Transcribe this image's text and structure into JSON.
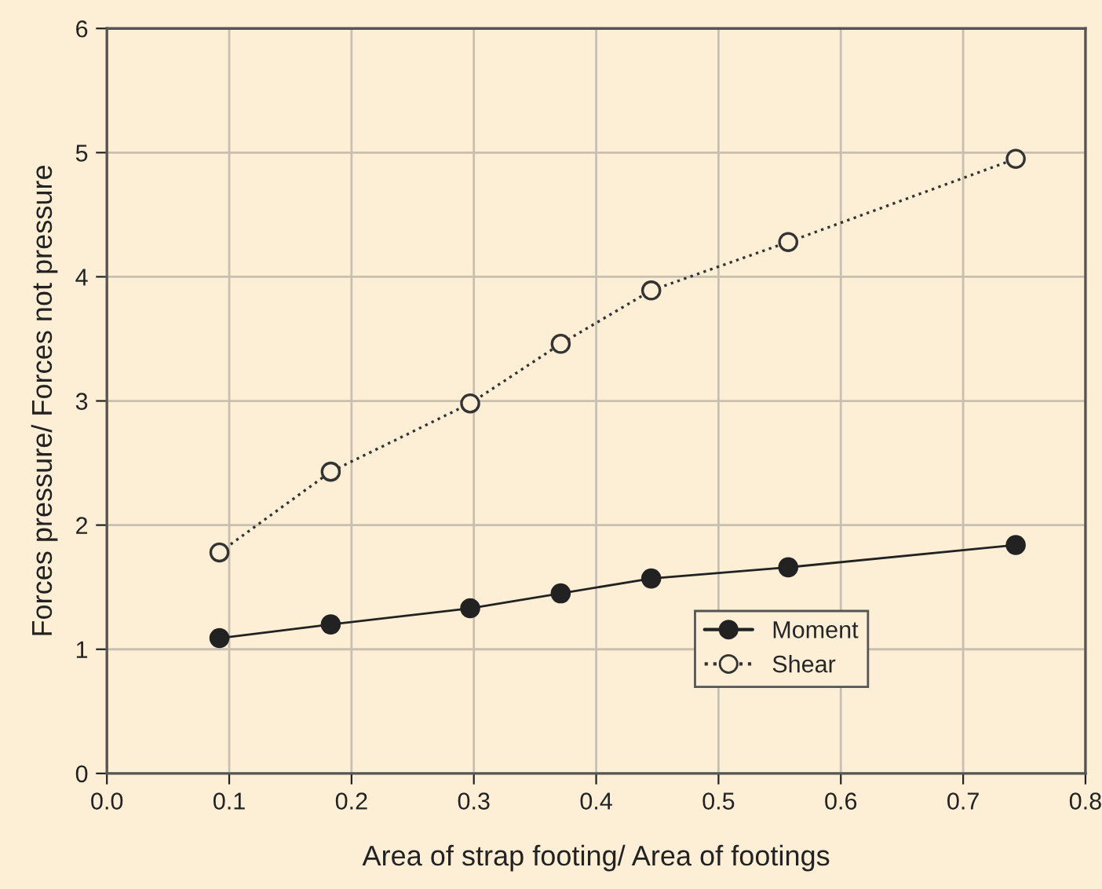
{
  "chart_data": {
    "type": "line",
    "xlabel": "Area of strap footing/ Area of footings",
    "ylabel": "Forces pressure/ Forces not pressure",
    "x": [
      0.092,
      0.183,
      0.297,
      0.371,
      0.445,
      0.557,
      0.743
    ],
    "series": [
      {
        "name": "Moment",
        "color": "#222222",
        "marker": "circle",
        "line_style": "solid",
        "values": [
          1.09,
          1.2,
          1.33,
          1.45,
          1.57,
          1.66,
          1.84
        ]
      },
      {
        "name": "Shear",
        "color": "#333333",
        "marker": "circle",
        "line_style": "dotted",
        "values": [
          1.78,
          2.43,
          2.98,
          3.46,
          3.89,
          4.28,
          4.95
        ]
      }
    ],
    "xlim": [
      0,
      0.8
    ],
    "xticks": [
      {
        "value": 0,
        "label": "0.0"
      },
      0.1,
      0.2,
      0.3,
      0.4,
      0.5,
      0.6,
      0.7,
      0.8
    ],
    "ylim": [
      0,
      6
    ],
    "yticks": [
      0,
      1,
      2,
      3,
      4,
      5,
      6
    ],
    "grid": true,
    "legend": "lower right"
  }
}
